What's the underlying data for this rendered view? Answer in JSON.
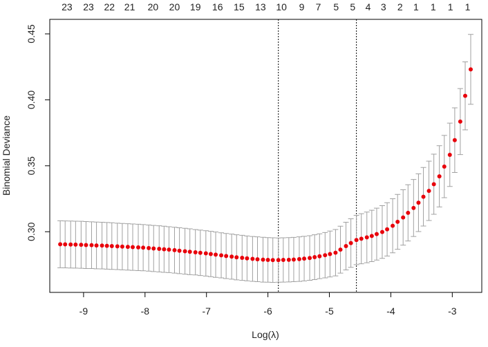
{
  "chart_data": {
    "type": "scatter",
    "xlabel": "Log(λ)",
    "ylabel": "Binomial Deviance",
    "xlim": [
      -9.55,
      -2.52
    ],
    "ylim": [
      0.254,
      0.461
    ],
    "xticks": [
      -9,
      -8,
      -7,
      -6,
      -5,
      -4,
      -3
    ],
    "yticks": [
      {
        "value": 0.3,
        "label": "0.30"
      },
      0.35,
      {
        "value": 0.4,
        "label": "0.40"
      },
      0.45
    ],
    "top_ticks": [
      {
        "value": -9.27,
        "label": "23"
      },
      {
        "value": -8.92,
        "label": "23"
      },
      {
        "value": -8.58,
        "label": "22"
      },
      {
        "value": -8.25,
        "label": "21"
      },
      {
        "value": -7.87,
        "label": "20"
      },
      {
        "value": -7.52,
        "label": "20"
      },
      {
        "value": -7.18,
        "label": "19"
      },
      {
        "value": -6.82,
        "label": "16"
      },
      {
        "value": -6.47,
        "label": "15"
      },
      {
        "value": -6.12,
        "label": "13"
      },
      {
        "value": -5.78,
        "label": "10"
      },
      {
        "value": -5.45,
        "label": "9"
      },
      {
        "value": -5.18,
        "label": "7"
      },
      {
        "value": -4.89,
        "label": "5"
      },
      {
        "value": -4.62,
        "label": "5"
      },
      {
        "value": -4.37,
        "label": "4"
      },
      {
        "value": -4.12,
        "label": "3"
      },
      {
        "value": -3.85,
        "label": "2"
      },
      {
        "value": -3.59,
        "label": "1"
      },
      {
        "value": -3.31,
        "label": "1"
      },
      {
        "value": -3.03,
        "label": "1"
      },
      {
        "value": -2.75,
        "label": "1"
      }
    ],
    "vlines": [
      -5.83,
      -4.56
    ],
    "x": [
      -9.38,
      -9.3,
      -9.21,
      -9.13,
      -9.04,
      -8.96,
      -8.87,
      -8.79,
      -8.7,
      -8.62,
      -8.54,
      -8.45,
      -8.37,
      -8.28,
      -8.2,
      -8.11,
      -8.03,
      -7.94,
      -7.86,
      -7.77,
      -7.69,
      -7.61,
      -7.52,
      -7.44,
      -7.35,
      -7.27,
      -7.18,
      -7.1,
      -7.01,
      -6.93,
      -6.85,
      -6.76,
      -6.68,
      -6.59,
      -6.51,
      -6.42,
      -6.34,
      -6.25,
      -6.17,
      -6.08,
      -6.0,
      -5.92,
      -5.83,
      -5.75,
      -5.66,
      -5.58,
      -5.49,
      -5.41,
      -5.32,
      -5.24,
      -5.16,
      -5.07,
      -4.99,
      -4.9,
      -4.82,
      -4.73,
      -4.65,
      -4.56,
      -4.48,
      -4.39,
      -4.31,
      -4.23,
      -4.14,
      -4.06,
      -3.97,
      -3.89,
      -3.8,
      -3.72,
      -3.63,
      -3.55,
      -3.47,
      -3.38,
      -3.3,
      -3.21,
      -3.13,
      -3.04,
      -2.96,
      -2.87,
      -2.79,
      -2.7
    ],
    "series": [
      {
        "color": "#e8000b",
        "error_color": "#a0a0a0",
        "values": [
          0.2905,
          0.2904,
          0.2903,
          0.2902,
          0.2901,
          0.2899,
          0.2898,
          0.2896,
          0.2895,
          0.2893,
          0.2891,
          0.2889,
          0.2887,
          0.2885,
          0.2883,
          0.2881,
          0.2879,
          0.2876,
          0.2873,
          0.287,
          0.2867,
          0.2864,
          0.286,
          0.2856,
          0.2852,
          0.2848,
          0.2844,
          0.284,
          0.2836,
          0.2831,
          0.2826,
          0.2821,
          0.2816,
          0.2811,
          0.2806,
          0.2802,
          0.2798,
          0.2794,
          0.2791,
          0.2788,
          0.2786,
          0.2785,
          0.2785,
          0.2786,
          0.2787,
          0.2789,
          0.2792,
          0.2796,
          0.2801,
          0.2807,
          0.2814,
          0.2822,
          0.2831,
          0.2841,
          0.2864,
          0.2891,
          0.2914,
          0.2937,
          0.2947,
          0.2957,
          0.2968,
          0.2982,
          0.2998,
          0.3018,
          0.3045,
          0.3075,
          0.3108,
          0.3143,
          0.318,
          0.322,
          0.3265,
          0.331,
          0.336,
          0.342,
          0.3494,
          0.3583,
          0.3694,
          0.3835,
          0.403,
          0.4231
        ],
        "errors": [
          0.0178,
          0.0178,
          0.0178,
          0.0178,
          0.0178,
          0.0178,
          0.0177,
          0.0177,
          0.0177,
          0.0177,
          0.0177,
          0.0176,
          0.0176,
          0.0176,
          0.0176,
          0.0176,
          0.0175,
          0.0175,
          0.0175,
          0.0175,
          0.0175,
          0.0174,
          0.0174,
          0.0174,
          0.0174,
          0.0174,
          0.0172,
          0.0172,
          0.0172,
          0.0172,
          0.0172,
          0.0171,
          0.0171,
          0.0171,
          0.0171,
          0.0171,
          0.017,
          0.017,
          0.017,
          0.017,
          0.0169,
          0.0169,
          0.0168,
          0.0168,
          0.0168,
          0.0168,
          0.0169,
          0.0169,
          0.0169,
          0.017,
          0.017,
          0.0172,
          0.0174,
          0.0176,
          0.0178,
          0.0181,
          0.0184,
          0.0187,
          0.019,
          0.0192,
          0.0195,
          0.0197,
          0.02,
          0.0202,
          0.0205,
          0.0208,
          0.021,
          0.0213,
          0.0216,
          0.0219,
          0.0222,
          0.0225,
          0.0228,
          0.0232,
          0.0236,
          0.024,
          0.0245,
          0.025,
          0.0258,
          0.0265
        ]
      }
    ]
  }
}
